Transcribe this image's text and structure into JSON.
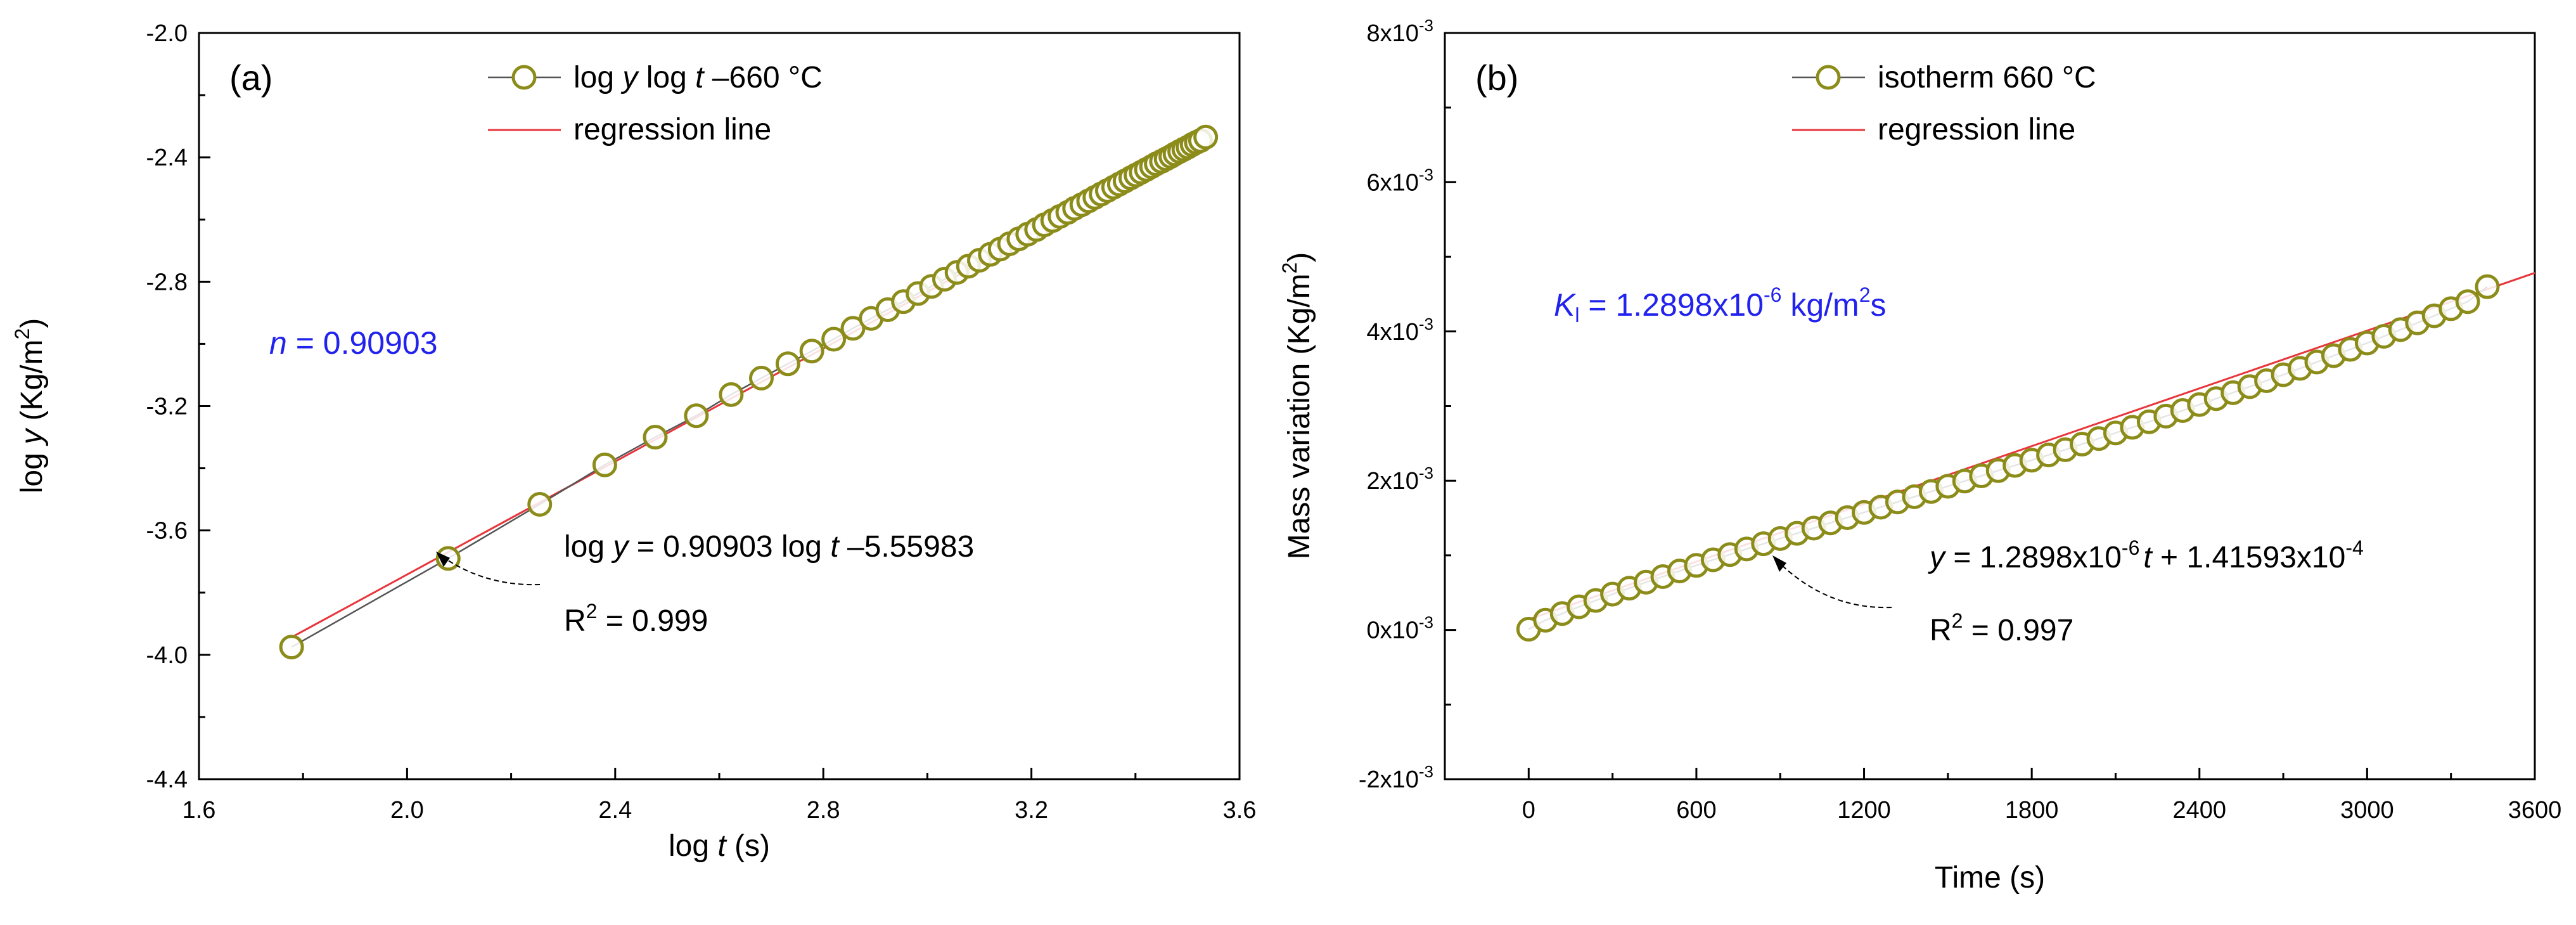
{
  "colors": {
    "marker": "#8c8c1a",
    "regression": "#e8353b",
    "connect": "#555555",
    "accent_text": "#2222ee"
  },
  "chart_data": [
    {
      "type": "scatter",
      "panel_label": "(a)",
      "xlabel_pre": "log ",
      "xlabel_var": "t",
      "xlabel_post": " (s)",
      "ylabel_pre": "log ",
      "ylabel_var": "y",
      "ylabel_post": " (Kg/m",
      "ylabel_sup": "2",
      "ylabel_end": ")",
      "xlim": [
        1.6,
        3.6
      ],
      "ylim": [
        -4.4,
        -2.0
      ],
      "x_ticks": [
        1.6,
        2.0,
        2.4,
        2.8,
        3.2,
        3.6
      ],
      "x_tick_labels": [
        "1.6",
        "2.0",
        "2.4",
        "2.8",
        "3.2",
        "3.6"
      ],
      "y_ticks": [
        -4.4,
        -4.0,
        -3.6,
        -3.2,
        -2.8,
        -2.4,
        -2.0
      ],
      "y_tick_labels": [
        "-4.4",
        "-4.0",
        "-3.6",
        "-3.2",
        "-2.8",
        "-2.4",
        "-2.0"
      ],
      "legend": {
        "series_pre": "log ",
        "series_y": "y",
        "series_mid": " log ",
        "series_t": "t",
        "series_post": " –660 °C",
        "regression": "regression line"
      },
      "annotation": {
        "n_var": "n",
        "n_text": " = 0.90903",
        "eq_pre": "log ",
        "eq_y": "y",
        "eq_mid": " = 0.90903 log ",
        "eq_t": "t",
        "eq_post": " –5.55983",
        "r2_pre": "R",
        "r2_sup": "2",
        "r2_post": " = 0.999"
      },
      "regression": {
        "slope": 0.90903,
        "intercept": -5.55983
      },
      "series": [
        {
          "name": "log y log t -660 °C",
          "x": [
            1.778,
            2.079,
            2.255,
            2.38,
            2.477,
            2.556,
            2.623,
            2.681,
            2.732,
            2.778,
            2.82,
            2.857,
            2.892,
            2.924,
            2.954,
            2.982,
            3.008,
            3.033,
            3.057,
            3.079,
            3.1,
            3.121,
            3.14,
            3.158,
            3.176,
            3.193,
            3.21,
            3.225,
            3.241,
            3.255,
            3.27,
            3.283,
            3.297,
            3.31,
            3.322,
            3.334,
            3.346,
            3.358,
            3.369,
            3.38,
            3.391,
            3.401,
            3.411,
            3.421,
            3.431,
            3.44,
            3.45,
            3.459,
            3.468,
            3.476,
            3.485,
            3.493,
            3.501,
            3.509,
            3.517,
            3.525,
            3.535
          ],
          "y": [
            -3.975,
            -3.69,
            -3.516,
            -3.389,
            -3.3,
            -3.231,
            -3.163,
            -3.11,
            -3.064,
            -3.023,
            -2.985,
            -2.95,
            -2.918,
            -2.89,
            -2.864,
            -2.838,
            -2.815,
            -2.792,
            -2.77,
            -2.75,
            -2.731,
            -2.712,
            -2.695,
            -2.678,
            -2.662,
            -2.647,
            -2.632,
            -2.617,
            -2.603,
            -2.59,
            -2.577,
            -2.564,
            -2.552,
            -2.54,
            -2.529,
            -2.518,
            -2.507,
            -2.496,
            -2.486,
            -2.476,
            -2.466,
            -2.457,
            -2.448,
            -2.439,
            -2.43,
            -2.421,
            -2.413,
            -2.405,
            -2.397,
            -2.389,
            -2.381,
            -2.374,
            -2.367,
            -2.359,
            -2.352,
            -2.346,
            -2.335
          ]
        }
      ]
    },
    {
      "type": "scatter",
      "panel_label": "(b)",
      "xlabel": "Time (s)",
      "ylabel_pre": "Mass variation (Kg/m",
      "ylabel_sup": "2",
      "ylabel_end": ")",
      "xlim": [
        -300,
        3600
      ],
      "ylim": [
        -0.002,
        0.008
      ],
      "x_ticks": [
        0,
        600,
        1200,
        1800,
        2400,
        3000,
        3600
      ],
      "x_tick_labels": [
        "0",
        "600",
        "1200",
        "1800",
        "2400",
        "3000",
        "3600"
      ],
      "y_ticks": [
        -0.002,
        0.0,
        0.002,
        0.004,
        0.006,
        0.008
      ],
      "y_tick_mant": [
        "-2x10",
        "0x10",
        "2x10",
        "4x10",
        "6x10",
        "8x10"
      ],
      "y_tick_exp": "-3",
      "legend": {
        "series": "isotherm 660 °C",
        "regression": "regression line"
      },
      "annotation": {
        "k_var": "K",
        "k_sub": "l",
        "k_text": " = 1.2898x10",
        "k_sup": "-6",
        "k_unit": " kg/m",
        "k_unit_sup": "2",
        "k_unit_end": "s",
        "eq_y": "y",
        "eq_a": " = 1.2898x10",
        "eq_sup1": "-6",
        "eq_t": "t",
        "eq_b": " + 1.41593x10",
        "eq_sup2": "-4",
        "r2_pre": "R",
        "r2_sup": "2",
        "r2_post": " = 0.997"
      },
      "regression": {
        "slope": 1.2898e-06,
        "intercept": 0.000141593,
        "x_range": [
          0,
          3600
        ]
      },
      "series": [
        {
          "name": "isotherm 660 °C",
          "x": [
            0,
            60,
            120,
            180,
            240,
            300,
            360,
            420,
            480,
            540,
            600,
            660,
            720,
            780,
            840,
            900,
            960,
            1020,
            1080,
            1140,
            1200,
            1260,
            1320,
            1380,
            1440,
            1500,
            1560,
            1620,
            1680,
            1740,
            1800,
            1860,
            1920,
            1980,
            2040,
            2100,
            2160,
            2220,
            2280,
            2340,
            2400,
            2460,
            2520,
            2580,
            2640,
            2700,
            2760,
            2820,
            2880,
            2940,
            3000,
            3060,
            3120,
            3180,
            3240,
            3300,
            3360,
            3430
          ],
          "y": [
            1e-05,
            0.00013,
            0.00022,
            0.00031,
            0.000395,
            0.00048,
            0.00056,
            0.00064,
            0.000715,
            0.00079,
            0.000865,
            0.00094,
            0.00101,
            0.001085,
            0.001155,
            0.001225,
            0.001295,
            0.001365,
            0.001435,
            0.001505,
            0.001575,
            0.001645,
            0.001715,
            0.001785,
            0.001855,
            0.001925,
            0.001995,
            0.002065,
            0.002135,
            0.002205,
            0.002275,
            0.002345,
            0.002415,
            0.00249,
            0.002565,
            0.00264,
            0.002715,
            0.00279,
            0.002865,
            0.00294,
            0.00302,
            0.0031,
            0.00318,
            0.00326,
            0.00334,
            0.00342,
            0.003505,
            0.00359,
            0.003675,
            0.00376,
            0.003845,
            0.003935,
            0.004025,
            0.004115,
            0.00421,
            0.004305,
            0.0044,
            0.0046
          ]
        }
      ]
    }
  ]
}
